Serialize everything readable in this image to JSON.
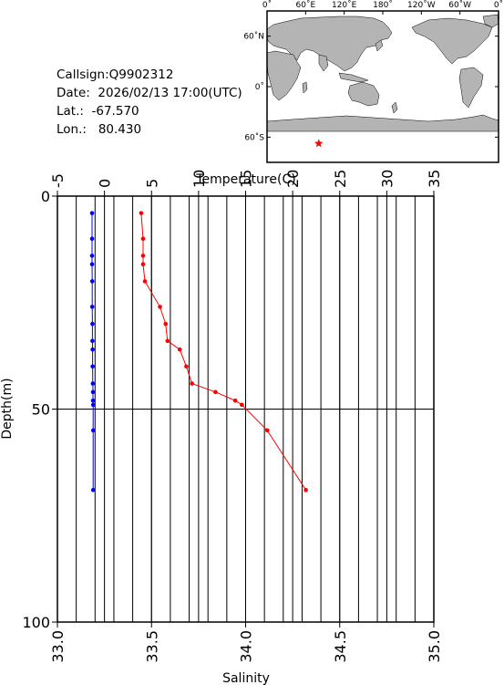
{
  "station": {
    "callsign": "Callsign:Q9902312",
    "date": "Date:  2026/02/13 17:00(UTC)",
    "lat": "Lat.:  -67.570",
    "lon": "Lon.:   80.430"
  },
  "map": {
    "top_labels": [
      "0˚",
      "60˚E",
      "120˚E",
      "180˚",
      "120˚W",
      "60˚W",
      "0˚"
    ],
    "left_labels": [
      "60˚N",
      "0˚",
      "60˚S"
    ],
    "marker_lon": 80.43,
    "marker_lat": -67.57,
    "land_color": "#b4b4b4",
    "marker_color": "#ff0000"
  },
  "chart_data": {
    "type": "line",
    "title": "",
    "xlabel_top": "Temperature(C)",
    "xlabel_bottom": "Salinity",
    "ylabel": "Depth(m)",
    "temperature_axis": {
      "range": [
        -5,
        35
      ],
      "ticks": [
        "-5",
        "0",
        "5",
        "10",
        "15",
        "20",
        "25",
        "30",
        "35"
      ]
    },
    "salinity_axis": {
      "range": [
        33.0,
        35.0
      ],
      "ticks": [
        "33.0",
        "33.5",
        "34.0",
        "34.5",
        "35.0"
      ]
    },
    "depth_axis": {
      "range": [
        0,
        100
      ],
      "inverted": true,
      "ticks": [
        "0",
        "50",
        "100"
      ]
    },
    "grid": true,
    "series": [
      {
        "name": "Temperature",
        "axis": "temperature",
        "color": "#ff0000",
        "points": [
          {
            "depth": 4,
            "value": 3.9
          },
          {
            "depth": 10,
            "value": 4.1
          },
          {
            "depth": 14,
            "value": 4.1
          },
          {
            "depth": 16,
            "value": 4.1
          },
          {
            "depth": 20,
            "value": 4.3
          },
          {
            "depth": 26,
            "value": 5.9
          },
          {
            "depth": 30,
            "value": 6.5
          },
          {
            "depth": 34,
            "value": 6.7
          },
          {
            "depth": 36,
            "value": 8.0
          },
          {
            "depth": 40,
            "value": 8.7
          },
          {
            "depth": 44,
            "value": 9.3
          },
          {
            "depth": 46,
            "value": 11.8
          },
          {
            "depth": 48,
            "value": 13.9
          },
          {
            "depth": 49,
            "value": 14.6
          },
          {
            "depth": 55,
            "value": 17.3
          },
          {
            "depth": 69,
            "value": 21.4
          }
        ]
      },
      {
        "name": "Salinity",
        "axis": "salinity",
        "color": "#0000ff",
        "points": [
          {
            "depth": 4,
            "value": 33.184
          },
          {
            "depth": 10,
            "value": 33.184
          },
          {
            "depth": 14,
            "value": 33.184
          },
          {
            "depth": 16,
            "value": 33.184
          },
          {
            "depth": 20,
            "value": 33.185
          },
          {
            "depth": 26,
            "value": 33.185
          },
          {
            "depth": 30,
            "value": 33.186
          },
          {
            "depth": 34,
            "value": 33.186
          },
          {
            "depth": 36,
            "value": 33.187
          },
          {
            "depth": 40,
            "value": 33.187
          },
          {
            "depth": 44,
            "value": 33.188
          },
          {
            "depth": 46,
            "value": 33.189
          },
          {
            "depth": 48,
            "value": 33.189
          },
          {
            "depth": 49,
            "value": 33.19
          },
          {
            "depth": 55,
            "value": 33.19
          },
          {
            "depth": 69,
            "value": 33.19
          }
        ]
      }
    ]
  }
}
